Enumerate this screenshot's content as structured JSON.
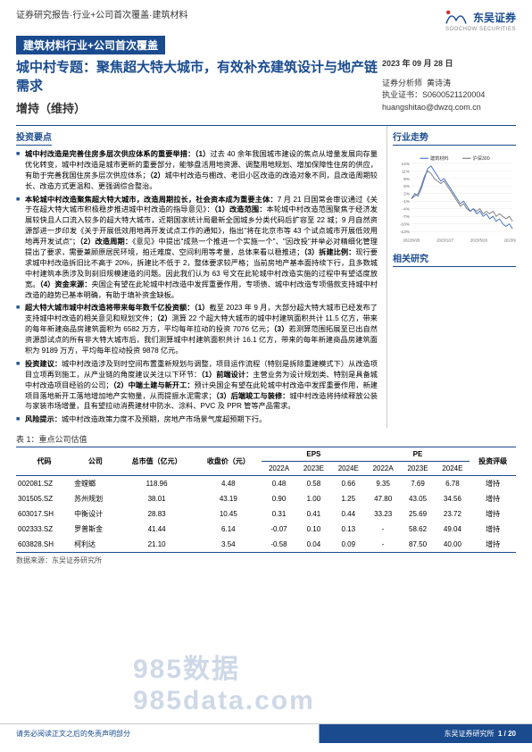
{
  "header": {
    "breadcrumb": "证券研究报告·行业+公司首次覆盖·建筑材料",
    "title_bar": "建筑材料行业+公司首次覆盖",
    "subtitle": "城中村专题：聚焦超大特大城市，有效补充建筑设计与地产链需求",
    "rating": "增持（维持）",
    "logo_cn": "东吴证券",
    "logo_en": "SOOCHOW SECURITIES"
  },
  "meta": {
    "date": "2023 年 09 月 28 日",
    "analyst_label": "证券分析师",
    "analyst_name": "黄诗涛",
    "cert_label": "执业证书：",
    "cert_no": "S0600521120004",
    "email": "huangshitao@dwzq.com.cn"
  },
  "invest_points_head": "投资要点",
  "bullets": [
    "<span class='bold'>城中村改造是完善住房多层次供应体系的重要举措：（1）</span>过去 40 余年我国城市建设的焦点从增量发展向存量优化转变，城中村改造是城市更新的重要部分，能够盘活用地资源、调整用地规划、增加保障性住房的供应，有助于完善我国住房多层次供应体系；<span class='bold'>（2）</span>城中村改造与棚改、老旧小区改造的改造对象不同，且改造周期较长、改造方式更温和、更强调综合整治。",
    "<span class='bold'>本轮城中村改造聚焦超大特大城市，改造周期拉长，社会资本成为重要主体：</span>7 月 21 日国常会审议通过《关于在超大特大城市积极稳步推进城中村改造的指导意见》：<span class='bold'>（1）改造范围：</span>本轮城中村改造范围聚焦于经济发展较快且人口流入较多的超大特大城市，近期国家统计局最新全国城乡分类代码后扩容至 22 城；9 月自然资源部进一步印发《关于开展低效用地再开发试点工作的通知》，指出\"将在北京市等 43 个试点城市开展低效用地再开发试点\"；<span class='bold'>（2）改造周期：</span>《意见》中提出\"成熟一个推进一个实施一个\"、\"因改投\"并举必对精细化管理提出了要求，需要兼顾原居民环境，拍迁难度、空间利用等考量，总体来看以稳推进；<span class='bold'>（3）拆建比例：</span>现行要求城中村改造拆旧比不高于 20%，拆建比不低于 2，整体要求较严格；当前房地产基本面持续下行，且多数城中村建筑本质涉及到刹旧规模建造的问题。因此我们认为 63 号文在此轮城中村改造实施的过程中有望适度放宽。<span class='bold'>（4）资金来源：</span>央国企有望在此轮城中村改造中发挥重要作用，专项债、城中村改造专项借款支持城中村改造的趋势已基本明确，有助于填补资金缺板。",
    "<span class='bold'>超大特大城市城中村改造将带来每年数千亿投资额：（1）</span>截至 2023 年 9 月，大部分超大特大城市已经发布了支持城中村改造的相关意见和规划文件；<span class='bold'>（2）</span>测算 22 个超大特大城市的城中村建筑面积共计 11.5 亿方，带来的每年新建商品房建筑面积为 6582 万方，平均每年拉动的投资 7076 亿元；<span class='bold'>（3）</span>若测算范围拓展至已出自然资源部试点的所有非大特大城市后，我们测算城中村建筑面积共计 16.1 亿方，带来的每年新建商品房建筑面积为 9189 万方，平均每年拉动投资 9878 亿元。",
    "<span class='bold'>投资建议：</span>城中村改造涉及到时空间布置重新规划与调整，项目运作流程（特别是拆除重建模式下）从改造项目立项再到施工，从产业链的角度建议关注以下环节：<span class='bold'>（1）前端设计：</span>主营业务为设计规划类、特别是具备城中村改造项目经验的公司；<span class='bold'>（2）中端土建与新开工：</span>预计央国企有望在此轮城中村改造中发挥重要作用，新建项目落地新开工落地增加地产实物量，从而提振水泥需求；<span class='bold'>（3）后端竣工与装修：</span>城中村改造将持续释放公装与家装市场增量，且有望拉动消费建材中防水、涂料、PVC 及 PPR 管等产品需求。",
    "<span class='bold'>风险提示：</span>城中村改造政策力度不及预期，房地产市场景气度超预期下行。"
  ],
  "chart": {
    "title": "行业走势",
    "legend": [
      "建筑材料",
      "沪深300"
    ],
    "colors": {
      "series1": "#4472c4",
      "series2": "#7f7f7f",
      "grid": "#e0e0e0",
      "axis": "#666"
    },
    "y_ticks": [
      "14%",
      "11%",
      "8%",
      "5%",
      "2%",
      "-1%",
      "-4%",
      "-7%",
      "-10%",
      "-13%"
    ],
    "x_ticks": [
      "2022/9/28",
      "2023/1/27",
      "2023/5/28",
      "2023/9/26"
    ],
    "y_range": [
      -13,
      14
    ],
    "series1": [
      0,
      2,
      1,
      4,
      8,
      12,
      13,
      11,
      9,
      7,
      8,
      6,
      4,
      2,
      0,
      -2,
      -1,
      -3,
      -5,
      -4,
      -6,
      -5,
      -7,
      -6,
      -8,
      -7,
      -9,
      -8,
      -10,
      -11,
      -10,
      -12
    ],
    "series2": [
      0,
      1,
      2,
      5,
      9,
      11,
      10,
      8,
      7,
      6,
      7,
      5,
      3,
      1,
      -1,
      -3,
      -2,
      -4,
      -5,
      -4,
      -5,
      -4,
      -6,
      -5,
      -6,
      -5,
      -7,
      -6,
      -7,
      -8,
      -7,
      -9
    ]
  },
  "related_head": "相关研究",
  "table": {
    "caption": "表 1：重点公司估值",
    "headers": {
      "code": "代码",
      "company": "公司",
      "mktcap": "总市值（亿元）",
      "close": "收盘价（元）",
      "eps": "EPS",
      "pe": "PE",
      "rating": "投资评级",
      "y22": "2022A",
      "y23": "2023E",
      "y24": "2024E"
    },
    "rows": [
      {
        "code": "002081.SZ",
        "company": "金螳螂",
        "mktcap": "118.96",
        "close": "4.48",
        "eps22": "0.48",
        "eps23": "0.58",
        "eps24": "0.66",
        "pe22": "9.35",
        "pe23": "7.69",
        "pe24": "6.78",
        "rating": "增持"
      },
      {
        "code": "301505.SZ",
        "company": "苏州规划",
        "mktcap": "38.01",
        "close": "43.19",
        "eps22": "0.90",
        "eps23": "1.00",
        "eps24": "1.25",
        "pe22": "47.80",
        "pe23": "43.05",
        "pe24": "34.56",
        "rating": "增持"
      },
      {
        "code": "603017.SH",
        "company": "中衡设计",
        "mktcap": "28.83",
        "close": "10.45",
        "eps22": "0.31",
        "eps23": "0.41",
        "eps24": "0.44",
        "pe22": "33.23",
        "pe23": "25.69",
        "pe24": "23.72",
        "rating": "增持"
      },
      {
        "code": "002333.SZ",
        "company": "罗普斯金",
        "mktcap": "41.44",
        "close": "6.14",
        "eps22": "-0.07",
        "eps23": "0.10",
        "eps24": "0.13",
        "pe22": "-",
        "pe23": "58.62",
        "pe24": "49.04",
        "rating": "增持"
      },
      {
        "code": "603828.SH",
        "company": "柯利达",
        "mktcap": "21.10",
        "close": "3.54",
        "eps22": "-0.58",
        "eps23": "0.04",
        "eps24": "0.09",
        "pe22": "-",
        "pe23": "87.50",
        "pe24": "40.00",
        "rating": "增持"
      }
    ],
    "source": "数据来源：东吴证券研究所"
  },
  "footer": {
    "left": "请务必阅读正文之后的免责声明部分",
    "right": "东吴证券研究所",
    "page": "1 / 20"
  },
  "watermark": "985数据 985data.com"
}
